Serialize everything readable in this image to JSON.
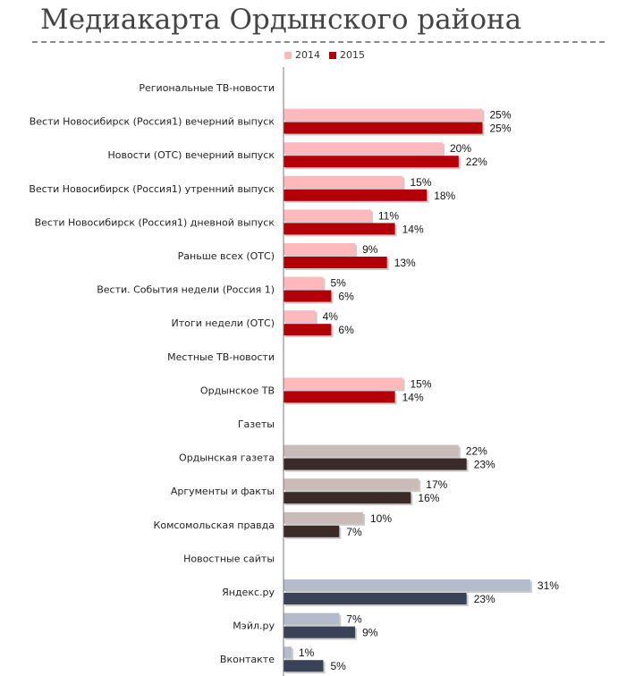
{
  "title": "Медиакарта Ордынского района",
  "chart_data": {
    "type": "bar",
    "orientation": "horizontal",
    "legend": [
      {
        "name": "2014",
        "color": "#ffb9bd"
      },
      {
        "name": "2015",
        "color": "#b30008"
      }
    ],
    "value_suffix": "%",
    "categories": [
      {
        "label": "Региональные ТВ-новости",
        "header": true
      },
      {
        "label": "Вести Новосибирск (Россия1) вечерний выпуск",
        "v2014": 25,
        "v2015": 25,
        "c2014": "#ffb9bd",
        "c2015": "#b30008"
      },
      {
        "label": "Новости (ОТС) вечерний выпуск",
        "v2014": 20,
        "v2015": 22,
        "c2014": "#ffb9bd",
        "c2015": "#b30008"
      },
      {
        "label": "Вести Новосибирск (Россия1) утренний выпуск",
        "v2014": 15,
        "v2015": 18,
        "c2014": "#ffb9bd",
        "c2015": "#b30008"
      },
      {
        "label": "Вести Новосибирск (Россия1) дневной выпуск",
        "v2014": 11,
        "v2015": 14,
        "c2014": "#ffb9bd",
        "c2015": "#b30008"
      },
      {
        "label": "Раньше всех (ОТС)",
        "v2014": 9,
        "v2015": 13,
        "c2014": "#ffb9bd",
        "c2015": "#b30008"
      },
      {
        "label": "Вести. События недели (Россия 1)",
        "v2014": 5,
        "v2015": 6,
        "c2014": "#ffb9bd",
        "c2015": "#b30008"
      },
      {
        "label": "Итоги недели (ОТС)",
        "v2014": 4,
        "v2015": 6,
        "c2014": "#ffb9bd",
        "c2015": "#b30008"
      },
      {
        "label": "Местные ТВ-новости",
        "header": true
      },
      {
        "label": "Ордынское ТВ",
        "v2014": 15,
        "v2015": 14,
        "c2014": "#ffb9bd",
        "c2015": "#b30008"
      },
      {
        "label": "Газеты",
        "header": true
      },
      {
        "label": "Ордынская газета",
        "v2014": 22,
        "v2015": 23,
        "c2014": "#c9bcb8",
        "c2015": "#3a2b28"
      },
      {
        "label": "Аргументы и факты",
        "v2014": 17,
        "v2015": 16,
        "c2014": "#c9bcb8",
        "c2015": "#3a2b28"
      },
      {
        "label": "Комсомольская правда",
        "v2014": 10,
        "v2015": 7,
        "c2014": "#c9bcb8",
        "c2015": "#3a2b28"
      },
      {
        "label": "Новостные сайты",
        "header": true
      },
      {
        "label": "Яндекс.ру",
        "v2014": 31,
        "v2015": 23,
        "c2014": "#b4bccb",
        "c2015": "#3a4258"
      },
      {
        "label": "Мэйл.ру",
        "v2014": 7,
        "v2015": 9,
        "c2014": "#b4bccb",
        "c2015": "#3a4258"
      },
      {
        "label": "Вконтакте",
        "v2014": 1,
        "v2015": 5,
        "c2014": "#b4bccb",
        "c2015": "#3a4258"
      }
    ]
  }
}
